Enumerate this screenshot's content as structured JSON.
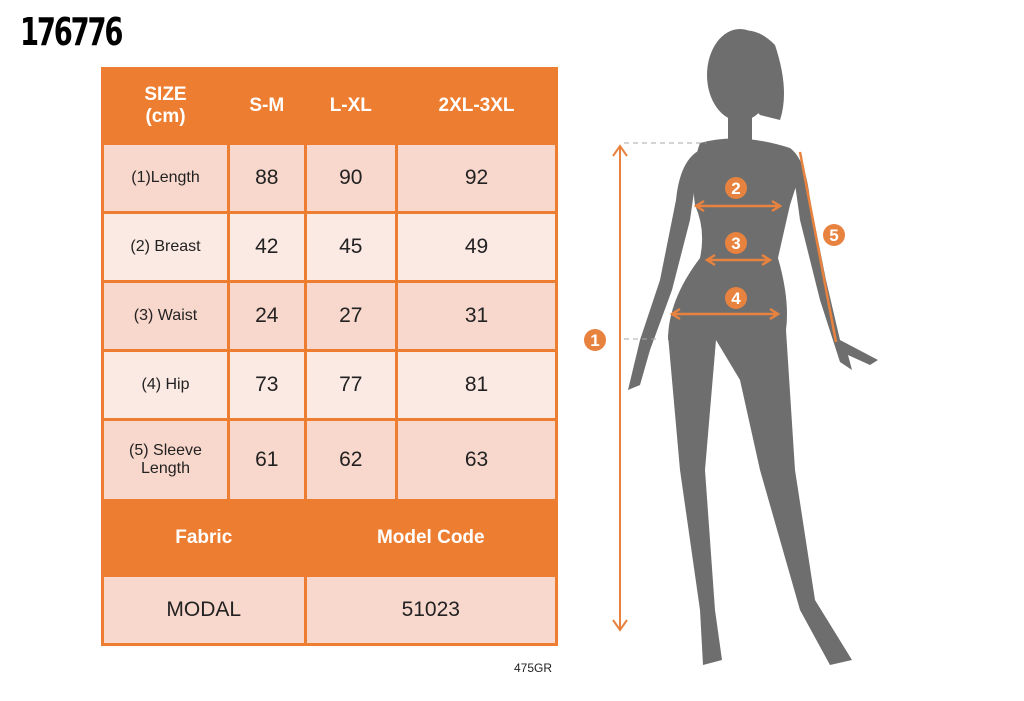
{
  "product_code": "176776",
  "table": {
    "headers": [
      "SIZE\n(cm)",
      "S-M",
      "L-XL",
      "2XL-3XL"
    ],
    "header_size_line1": "SIZE",
    "header_size_line2": "(cm)",
    "rows": [
      {
        "label": "(1)Length",
        "values": [
          "88",
          "90",
          "92"
        ]
      },
      {
        "label": "(2) Breast",
        "values": [
          "42",
          "45",
          "49"
        ]
      },
      {
        "label": "(3) Waist",
        "values": [
          "24",
          "27",
          "31"
        ]
      },
      {
        "label": "(4) Hip",
        "values": [
          "73",
          "77",
          "81"
        ]
      },
      {
        "label": "(5) Sleeve Length",
        "values": [
          "61",
          "62",
          "63"
        ]
      }
    ],
    "fabric_label": "Fabric",
    "model_code_label": "Model Code",
    "fabric_value": "MODAL",
    "model_code_value": "51023"
  },
  "footer_code": "475GR",
  "diagram": {
    "markers": [
      "1",
      "2",
      "3",
      "4",
      "5"
    ]
  },
  "colors": {
    "accent": "#ed7d31",
    "row_dark": "#f8d7cc",
    "row_light": "#fbe9e3",
    "silhouette": "#6e6e6e"
  }
}
